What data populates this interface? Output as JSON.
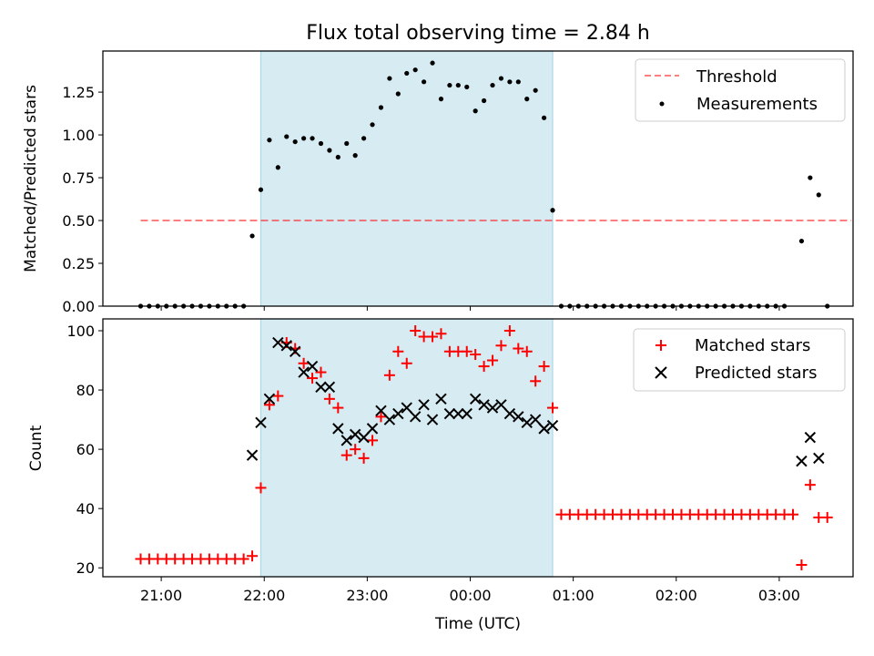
{
  "colors": {
    "band": "#add8e6",
    "threshold": "#ff0000",
    "measurement": "#000000",
    "matched": "#ff0000",
    "predicted": "#000000"
  },
  "chart_data": [
    {
      "type": "scatter",
      "title": "Flux total observing time = 2.84 h",
      "ylabel": "Matched/Predicted stars",
      "xlabel": "",
      "xlim": [
        "2023-01-01T20:26",
        "2023-01-02T03:43"
      ],
      "ylim": [
        0,
        1.49
      ],
      "x_ticks": [
        "21:00",
        "22:00",
        "23:00",
        "00:00",
        "01:00",
        "02:00",
        "03:00"
      ],
      "y_ticks": [
        "0.00",
        "0.25",
        "0.50",
        "0.75",
        "1.00",
        "1.25"
      ],
      "grid": false,
      "legend_position": "top-right",
      "observing_window": [
        "2023-01-01T21:58",
        "2023-01-02T00:48"
      ],
      "series": [
        {
          "name": "Threshold",
          "style": "dashed-line",
          "points": [
            [
              "2023-01-01T20:48",
              0.5
            ],
            [
              "2023-01-02T03:42",
              0.5
            ]
          ]
        },
        {
          "name": "Measurements",
          "style": "dot",
          "points": [
            [
              "2023-01-01T20:48",
              0
            ],
            [
              "2023-01-01T20:53",
              0
            ],
            [
              "2023-01-01T20:58",
              0
            ],
            [
              "2023-01-01T21:03",
              0
            ],
            [
              "2023-01-01T21:08",
              0
            ],
            [
              "2023-01-01T21:13",
              0
            ],
            [
              "2023-01-01T21:18",
              0
            ],
            [
              "2023-01-01T21:23",
              0
            ],
            [
              "2023-01-01T21:28",
              0
            ],
            [
              "2023-01-01T21:33",
              0
            ],
            [
              "2023-01-01T21:38",
              0
            ],
            [
              "2023-01-01T21:43",
              0
            ],
            [
              "2023-01-01T21:48",
              0
            ],
            [
              "2023-01-01T21:53",
              0.41
            ],
            [
              "2023-01-01T21:58",
              0.68
            ],
            [
              "2023-01-01T22:03",
              0.97
            ],
            [
              "2023-01-01T22:08",
              0.81
            ],
            [
              "2023-01-01T22:13",
              0.99
            ],
            [
              "2023-01-01T22:18",
              0.96
            ],
            [
              "2023-01-01T22:23",
              0.98
            ],
            [
              "2023-01-01T22:28",
              0.98
            ],
            [
              "2023-01-01T22:33",
              0.95
            ],
            [
              "2023-01-01T22:38",
              0.91
            ],
            [
              "2023-01-01T22:43",
              0.87
            ],
            [
              "2023-01-01T22:48",
              0.95
            ],
            [
              "2023-01-01T22:53",
              0.88
            ],
            [
              "2023-01-01T22:58",
              0.98
            ],
            [
              "2023-01-01T23:03",
              1.06
            ],
            [
              "2023-01-01T23:08",
              1.16
            ],
            [
              "2023-01-01T23:13",
              1.33
            ],
            [
              "2023-01-01T23:18",
              1.24
            ],
            [
              "2023-01-01T23:23",
              1.36
            ],
            [
              "2023-01-01T23:28",
              1.38
            ],
            [
              "2023-01-01T23:33",
              1.31
            ],
            [
              "2023-01-01T23:38",
              1.42
            ],
            [
              "2023-01-01T23:43",
              1.21
            ],
            [
              "2023-01-01T23:48",
              1.29
            ],
            [
              "2023-01-01T23:53",
              1.29
            ],
            [
              "2023-01-01T23:58",
              1.28
            ],
            [
              "2023-01-02T00:03",
              1.14
            ],
            [
              "2023-01-02T00:08",
              1.2
            ],
            [
              "2023-01-02T00:13",
              1.29
            ],
            [
              "2023-01-02T00:18",
              1.33
            ],
            [
              "2023-01-02T00:23",
              1.31
            ],
            [
              "2023-01-02T00:28",
              1.31
            ],
            [
              "2023-01-02T00:33",
              1.21
            ],
            [
              "2023-01-02T00:38",
              1.26
            ],
            [
              "2023-01-02T00:43",
              1.1
            ],
            [
              "2023-01-02T00:48",
              0.56
            ],
            [
              "2023-01-02T00:53",
              0
            ],
            [
              "2023-01-02T00:58",
              0
            ],
            [
              "2023-01-02T01:03",
              0
            ],
            [
              "2023-01-02T01:08",
              0
            ],
            [
              "2023-01-02T01:13",
              0
            ],
            [
              "2023-01-02T01:18",
              0
            ],
            [
              "2023-01-02T01:23",
              0
            ],
            [
              "2023-01-02T01:28",
              0
            ],
            [
              "2023-01-02T01:33",
              0
            ],
            [
              "2023-01-02T01:38",
              0
            ],
            [
              "2023-01-02T01:43",
              0
            ],
            [
              "2023-01-02T01:48",
              0
            ],
            [
              "2023-01-02T01:53",
              0
            ],
            [
              "2023-01-02T01:58",
              0
            ],
            [
              "2023-01-02T02:03",
              0
            ],
            [
              "2023-01-02T02:08",
              0
            ],
            [
              "2023-01-02T02:13",
              0
            ],
            [
              "2023-01-02T02:18",
              0
            ],
            [
              "2023-01-02T02:23",
              0
            ],
            [
              "2023-01-02T02:28",
              0
            ],
            [
              "2023-01-02T02:33",
              0
            ],
            [
              "2023-01-02T02:38",
              0
            ],
            [
              "2023-01-02T02:43",
              0
            ],
            [
              "2023-01-02T02:48",
              0
            ],
            [
              "2023-01-02T02:53",
              0
            ],
            [
              "2023-01-02T02:58",
              0
            ],
            [
              "2023-01-02T03:03",
              0
            ],
            [
              "2023-01-02T03:13",
              0.38
            ],
            [
              "2023-01-02T03:18",
              0.75
            ],
            [
              "2023-01-02T03:23",
              0.65
            ],
            [
              "2023-01-02T03:28",
              0
            ]
          ]
        }
      ]
    },
    {
      "type": "scatter",
      "title": "",
      "ylabel": "Count",
      "xlabel": "Time (UTC)",
      "xlim": [
        "2023-01-01T20:26",
        "2023-01-02T03:43"
      ],
      "ylim": [
        17,
        104
      ],
      "x_ticks": [
        "21:00",
        "22:00",
        "23:00",
        "00:00",
        "01:00",
        "02:00",
        "03:00"
      ],
      "y_ticks": [
        "20",
        "40",
        "60",
        "80",
        "100"
      ],
      "grid": false,
      "legend_position": "top-right",
      "observing_window": [
        "2023-01-01T21:58",
        "2023-01-02T00:48"
      ],
      "series": [
        {
          "name": "Matched stars",
          "marker": "plus",
          "points": [
            [
              "2023-01-01T20:48",
              23
            ],
            [
              "2023-01-01T20:53",
              23
            ],
            [
              "2023-01-01T20:58",
              23
            ],
            [
              "2023-01-01T21:03",
              23
            ],
            [
              "2023-01-01T21:08",
              23
            ],
            [
              "2023-01-01T21:13",
              23
            ],
            [
              "2023-01-01T21:18",
              23
            ],
            [
              "2023-01-01T21:23",
              23
            ],
            [
              "2023-01-01T21:28",
              23
            ],
            [
              "2023-01-01T21:33",
              23
            ],
            [
              "2023-01-01T21:38",
              23
            ],
            [
              "2023-01-01T21:43",
              23
            ],
            [
              "2023-01-01T21:48",
              23
            ],
            [
              "2023-01-01T21:53",
              24
            ],
            [
              "2023-01-01T21:58",
              47
            ],
            [
              "2023-01-01T22:03",
              75
            ],
            [
              "2023-01-01T22:08",
              78
            ],
            [
              "2023-01-01T22:13",
              96
            ],
            [
              "2023-01-01T22:18",
              94
            ],
            [
              "2023-01-01T22:23",
              89
            ],
            [
              "2023-01-01T22:28",
              84
            ],
            [
              "2023-01-01T22:33",
              86
            ],
            [
              "2023-01-01T22:38",
              77
            ],
            [
              "2023-01-01T22:43",
              74
            ],
            [
              "2023-01-01T22:48",
              58
            ],
            [
              "2023-01-01T22:53",
              60
            ],
            [
              "2023-01-01T22:58",
              57
            ],
            [
              "2023-01-01T23:03",
              63
            ],
            [
              "2023-01-01T23:08",
              71
            ],
            [
              "2023-01-01T23:13",
              85
            ],
            [
              "2023-01-01T23:18",
              93
            ],
            [
              "2023-01-01T23:23",
              89
            ],
            [
              "2023-01-01T23:28",
              100
            ],
            [
              "2023-01-01T23:33",
              98
            ],
            [
              "2023-01-01T23:38",
              98
            ],
            [
              "2023-01-01T23:43",
              99
            ],
            [
              "2023-01-01T23:48",
              93
            ],
            [
              "2023-01-01T23:53",
              93
            ],
            [
              "2023-01-01T23:58",
              93
            ],
            [
              "2023-01-02T00:03",
              92
            ],
            [
              "2023-01-02T00:08",
              88
            ],
            [
              "2023-01-02T00:13",
              90
            ],
            [
              "2023-01-02T00:18",
              95
            ],
            [
              "2023-01-02T00:23",
              100
            ],
            [
              "2023-01-02T00:28",
              94
            ],
            [
              "2023-01-02T00:33",
              93
            ],
            [
              "2023-01-02T00:38",
              83
            ],
            [
              "2023-01-02T00:43",
              88
            ],
            [
              "2023-01-02T00:48",
              74
            ],
            [
              "2023-01-02T00:53",
              38
            ],
            [
              "2023-01-02T00:58",
              38
            ],
            [
              "2023-01-02T01:03",
              38
            ],
            [
              "2023-01-02T01:08",
              38
            ],
            [
              "2023-01-02T01:13",
              38
            ],
            [
              "2023-01-02T01:18",
              38
            ],
            [
              "2023-01-02T01:23",
              38
            ],
            [
              "2023-01-02T01:28",
              38
            ],
            [
              "2023-01-02T01:33",
              38
            ],
            [
              "2023-01-02T01:38",
              38
            ],
            [
              "2023-01-02T01:43",
              38
            ],
            [
              "2023-01-02T01:48",
              38
            ],
            [
              "2023-01-02T01:53",
              38
            ],
            [
              "2023-01-02T01:58",
              38
            ],
            [
              "2023-01-02T02:03",
              38
            ],
            [
              "2023-01-02T02:08",
              38
            ],
            [
              "2023-01-02T02:13",
              38
            ],
            [
              "2023-01-02T02:18",
              38
            ],
            [
              "2023-01-02T02:23",
              38
            ],
            [
              "2023-01-02T02:28",
              38
            ],
            [
              "2023-01-02T02:33",
              38
            ],
            [
              "2023-01-02T02:38",
              38
            ],
            [
              "2023-01-02T02:43",
              38
            ],
            [
              "2023-01-02T02:48",
              38
            ],
            [
              "2023-01-02T02:53",
              38
            ],
            [
              "2023-01-02T02:58",
              38
            ],
            [
              "2023-01-02T03:03",
              38
            ],
            [
              "2023-01-02T03:08",
              38
            ],
            [
              "2023-01-02T03:13",
              21
            ],
            [
              "2023-01-02T03:18",
              48
            ],
            [
              "2023-01-02T03:23",
              37
            ],
            [
              "2023-01-02T03:28",
              37
            ]
          ]
        },
        {
          "name": "Predicted stars",
          "marker": "x",
          "points": [
            [
              "2023-01-01T21:53",
              58
            ],
            [
              "2023-01-01T21:58",
              69
            ],
            [
              "2023-01-01T22:03",
              77
            ],
            [
              "2023-01-01T22:08",
              96
            ],
            [
              "2023-01-01T22:13",
              95
            ],
            [
              "2023-01-01T22:18",
              93
            ],
            [
              "2023-01-01T22:23",
              86
            ],
            [
              "2023-01-01T22:28",
              88
            ],
            [
              "2023-01-01T22:33",
              81
            ],
            [
              "2023-01-01T22:38",
              81
            ],
            [
              "2023-01-01T22:43",
              67
            ],
            [
              "2023-01-01T22:48",
              63
            ],
            [
              "2023-01-01T22:53",
              65
            ],
            [
              "2023-01-01T22:58",
              64
            ],
            [
              "2023-01-01T23:03",
              67
            ],
            [
              "2023-01-01T23:08",
              73
            ],
            [
              "2023-01-01T23:13",
              70
            ],
            [
              "2023-01-01T23:18",
              72
            ],
            [
              "2023-01-01T23:23",
              74
            ],
            [
              "2023-01-01T23:28",
              71
            ],
            [
              "2023-01-01T23:33",
              75
            ],
            [
              "2023-01-01T23:38",
              70
            ],
            [
              "2023-01-01T23:43",
              77
            ],
            [
              "2023-01-01T23:48",
              72
            ],
            [
              "2023-01-01T23:53",
              72
            ],
            [
              "2023-01-01T23:58",
              72
            ],
            [
              "2023-01-02T00:03",
              77
            ],
            [
              "2023-01-02T00:08",
              75
            ],
            [
              "2023-01-02T00:13",
              74
            ],
            [
              "2023-01-02T00:18",
              75
            ],
            [
              "2023-01-02T00:23",
              72
            ],
            [
              "2023-01-02T00:28",
              71
            ],
            [
              "2023-01-02T00:33",
              69
            ],
            [
              "2023-01-02T00:38",
              70
            ],
            [
              "2023-01-02T00:43",
              67
            ],
            [
              "2023-01-02T00:48",
              68
            ],
            [
              "2023-01-02T03:13",
              56
            ],
            [
              "2023-01-02T03:18",
              64
            ],
            [
              "2023-01-02T03:23",
              57
            ]
          ]
        }
      ]
    }
  ]
}
